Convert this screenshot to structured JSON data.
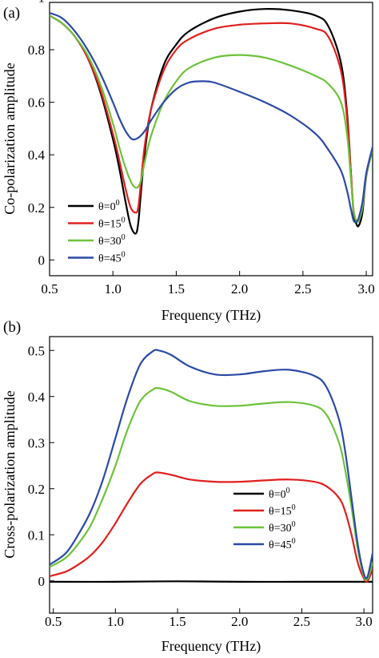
{
  "chart_data": [
    {
      "panel": "(a)",
      "type": "line",
      "xlabel": "Frequency (THz)",
      "ylabel": "Co-polarization amplitude",
      "xlim": [
        0.5,
        3.05
      ],
      "ylim": [
        -0.06,
        0.98
      ],
      "xticks": [
        "0.5",
        "1.0",
        "1.5",
        "2.0",
        "2.5",
        "3.0"
      ],
      "yticks": [
        "0",
        "0.2",
        "0.4",
        "0.6",
        "0.8",
        "1"
      ],
      "legend_position": "lower-left",
      "series": [
        {
          "name": "θ=0",
          "sup": "0",
          "color": "#000000",
          "x": [
            0.5,
            0.6,
            0.7,
            0.8,
            0.9,
            1.0,
            1.05,
            1.1,
            1.14,
            1.18,
            1.2,
            1.22,
            1.25,
            1.3,
            1.4,
            1.5,
            1.6,
            1.8,
            2.0,
            2.2,
            2.4,
            2.6,
            2.7,
            2.8,
            2.85,
            2.88,
            2.9,
            2.92,
            2.94,
            2.97,
            3.0,
            3.05
          ],
          "y": [
            0.93,
            0.9,
            0.85,
            0.77,
            0.64,
            0.46,
            0.35,
            0.22,
            0.13,
            0.1,
            0.14,
            0.25,
            0.4,
            0.57,
            0.74,
            0.82,
            0.87,
            0.92,
            0.945,
            0.955,
            0.95,
            0.93,
            0.89,
            0.75,
            0.55,
            0.32,
            0.18,
            0.14,
            0.13,
            0.18,
            0.32,
            0.42
          ]
        },
        {
          "name": "θ=15",
          "sup": "0",
          "color": "#e0201e",
          "x": [
            0.5,
            0.6,
            0.7,
            0.8,
            0.9,
            1.0,
            1.05,
            1.1,
            1.14,
            1.18,
            1.2,
            1.22,
            1.25,
            1.3,
            1.4,
            1.5,
            1.6,
            1.8,
            2.0,
            2.2,
            2.4,
            2.6,
            2.7,
            2.8,
            2.85,
            2.88,
            2.9,
            2.92,
            2.94,
            2.97,
            3.0,
            3.05
          ],
          "y": [
            0.93,
            0.9,
            0.85,
            0.77,
            0.65,
            0.48,
            0.38,
            0.27,
            0.2,
            0.18,
            0.2,
            0.29,
            0.43,
            0.57,
            0.72,
            0.8,
            0.84,
            0.88,
            0.895,
            0.9,
            0.9,
            0.88,
            0.85,
            0.72,
            0.53,
            0.32,
            0.19,
            0.15,
            0.15,
            0.2,
            0.32,
            0.42
          ]
        },
        {
          "name": "θ=30",
          "sup": "0",
          "color": "#6dc33a",
          "x": [
            0.5,
            0.6,
            0.7,
            0.8,
            0.9,
            1.0,
            1.05,
            1.1,
            1.15,
            1.19,
            1.22,
            1.25,
            1.3,
            1.4,
            1.5,
            1.6,
            1.8,
            2.0,
            2.2,
            2.4,
            2.6,
            2.7,
            2.8,
            2.85,
            2.88,
            2.9,
            2.92,
            2.94,
            2.97,
            3.0,
            3.05
          ],
          "y": [
            0.93,
            0.9,
            0.85,
            0.78,
            0.67,
            0.52,
            0.43,
            0.35,
            0.29,
            0.275,
            0.3,
            0.37,
            0.47,
            0.6,
            0.68,
            0.73,
            0.77,
            0.78,
            0.77,
            0.74,
            0.7,
            0.67,
            0.6,
            0.47,
            0.3,
            0.19,
            0.15,
            0.15,
            0.2,
            0.32,
            0.42
          ]
        },
        {
          "name": "θ=45",
          "sup": "0",
          "color": "#2b4aa6",
          "x": [
            0.5,
            0.6,
            0.7,
            0.8,
            0.9,
            1.0,
            1.05,
            1.1,
            1.15,
            1.2,
            1.25,
            1.3,
            1.4,
            1.5,
            1.6,
            1.7,
            1.8,
            2.0,
            2.2,
            2.4,
            2.6,
            2.7,
            2.8,
            2.85,
            2.88,
            2.9,
            2.92,
            2.94,
            2.97,
            3.0,
            3.05
          ],
          "y": [
            0.94,
            0.92,
            0.87,
            0.8,
            0.71,
            0.6,
            0.54,
            0.49,
            0.46,
            0.465,
            0.49,
            0.53,
            0.6,
            0.65,
            0.675,
            0.68,
            0.675,
            0.64,
            0.6,
            0.55,
            0.48,
            0.42,
            0.34,
            0.26,
            0.19,
            0.15,
            0.145,
            0.16,
            0.22,
            0.33,
            0.43
          ]
        }
      ]
    },
    {
      "panel": "(b)",
      "type": "line",
      "xlabel": "Frequency (THz)",
      "ylabel": "Cross-polarization amplitude",
      "xlim": [
        0.47,
        3.07
      ],
      "ylim": [
        -0.07,
        0.53
      ],
      "xticks": [
        "0.5",
        "1.0",
        "1.5",
        "2.0",
        "2.5",
        "3.0"
      ],
      "yticks": [
        "0",
        "0.1",
        "0.2",
        "0.3",
        "0.4",
        "0.5"
      ],
      "legend_position": "right",
      "series": [
        {
          "name": "θ=0",
          "sup": "0",
          "color": "#000000",
          "x": [
            0.47,
            1.0,
            1.5,
            2.0,
            2.5,
            3.0,
            3.07
          ],
          "y": [
            -0.002,
            -0.002,
            -0.001,
            -0.002,
            -0.002,
            -0.002,
            -0.002
          ]
        },
        {
          "name": "θ=15",
          "sup": "0",
          "color": "#e0201e",
          "x": [
            0.47,
            0.6,
            0.7,
            0.8,
            0.9,
            1.0,
            1.1,
            1.2,
            1.3,
            1.35,
            1.45,
            1.6,
            1.8,
            2.0,
            2.2,
            2.4,
            2.6,
            2.7,
            2.8,
            2.85,
            2.9,
            2.95,
            3.0,
            3.03,
            3.07
          ],
          "y": [
            0.01,
            0.02,
            0.035,
            0.055,
            0.085,
            0.125,
            0.17,
            0.21,
            0.232,
            0.235,
            0.23,
            0.22,
            0.215,
            0.215,
            0.218,
            0.22,
            0.215,
            0.205,
            0.18,
            0.15,
            0.1,
            0.04,
            0.005,
            0.0,
            0.025
          ]
        },
        {
          "name": "θ=30",
          "sup": "0",
          "color": "#6dc33a",
          "x": [
            0.47,
            0.6,
            0.7,
            0.8,
            0.9,
            1.0,
            1.1,
            1.2,
            1.3,
            1.35,
            1.45,
            1.6,
            1.8,
            2.0,
            2.2,
            2.4,
            2.6,
            2.7,
            2.8,
            2.85,
            2.9,
            2.95,
            3.0,
            3.03,
            3.07
          ],
          "y": [
            0.03,
            0.05,
            0.08,
            0.12,
            0.18,
            0.25,
            0.33,
            0.39,
            0.415,
            0.418,
            0.41,
            0.39,
            0.38,
            0.38,
            0.385,
            0.388,
            0.38,
            0.36,
            0.3,
            0.24,
            0.16,
            0.07,
            0.01,
            0.005,
            0.04
          ]
        },
        {
          "name": "θ=45",
          "sup": "0",
          "color": "#2b4aa6",
          "x": [
            0.47,
            0.6,
            0.7,
            0.8,
            0.9,
            1.0,
            1.1,
            1.2,
            1.3,
            1.35,
            1.45,
            1.6,
            1.8,
            2.0,
            2.2,
            2.4,
            2.6,
            2.7,
            2.8,
            2.85,
            2.9,
            2.95,
            3.0,
            3.03,
            3.07
          ],
          "y": [
            0.035,
            0.06,
            0.1,
            0.15,
            0.22,
            0.31,
            0.4,
            0.47,
            0.498,
            0.5,
            0.49,
            0.465,
            0.448,
            0.448,
            0.455,
            0.458,
            0.445,
            0.42,
            0.35,
            0.28,
            0.18,
            0.08,
            0.015,
            0.01,
            0.06
          ]
        }
      ]
    }
  ]
}
